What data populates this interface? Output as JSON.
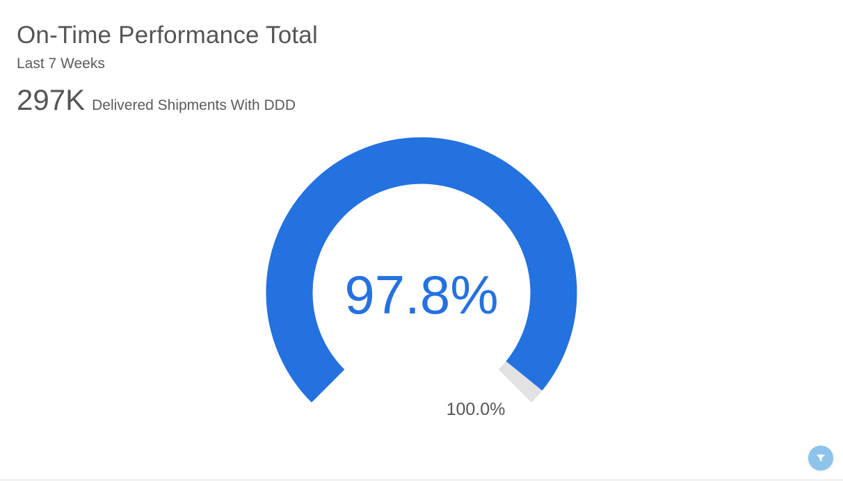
{
  "header": {
    "title": "On-Time Performance Total",
    "subtitle": "Last 7 Weeks",
    "kpi_value": "297K",
    "kpi_label": "Delivered Shipments With DDD"
  },
  "gauge": {
    "value_label": "97.8%",
    "max_label": "100.0%",
    "value": 97.8,
    "max": 100.0,
    "fill_color": "#2471e0",
    "track_color": "#e2e2e2"
  },
  "filter_button": {
    "icon": "filter-icon",
    "color": "#8cc4ec"
  },
  "chart_data": {
    "type": "gauge",
    "title": "On-Time Performance Total",
    "subtitle": "Last 7 Weeks",
    "value": 97.8,
    "min": 0,
    "max": 100.0,
    "value_label": "97.8%",
    "target_label": "100.0%",
    "annotation": "297K Delivered Shipments With DDD"
  }
}
